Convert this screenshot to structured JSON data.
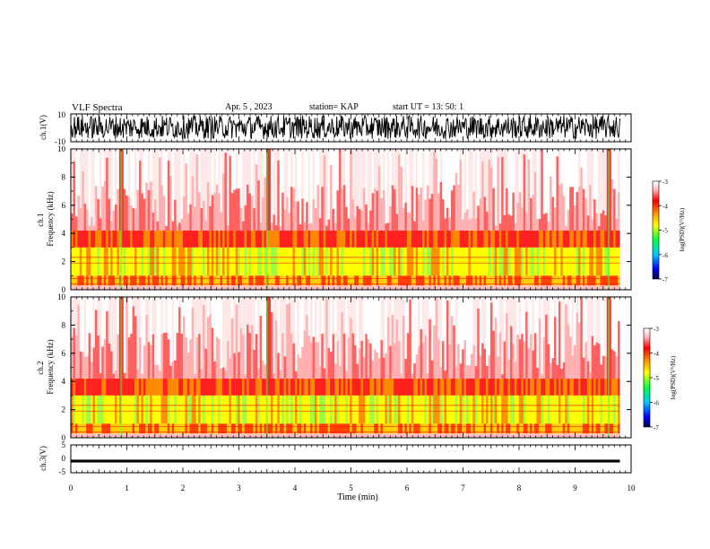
{
  "header": {
    "title": "VLF Spectra",
    "date": "Apr. 5 , 2023",
    "station": "station= KAP",
    "start": "start UT = 13: 50: 1"
  },
  "colors": {
    "colormap": [
      "#00003c",
      "#0000ff",
      "#00c8ff",
      "#00ff40",
      "#ffff00",
      "#ff8800",
      "#ff0000",
      "#ffc0c0",
      "#ffffff"
    ],
    "waveform": "#000000"
  },
  "chart_data": [
    {
      "type": "line",
      "panel": "ch1-waveform",
      "ylabel": "ch.1(V)",
      "ylim": [
        -10,
        10
      ],
      "yticks": [
        "10",
        "-10"
      ],
      "description_of_signal": "dense oscillating waveform filling most of range",
      "approx_amplitude_range": [
        -8,
        9
      ]
    },
    {
      "type": "heatmap",
      "panel": "ch1-spectrogram",
      "ylabel": "ch.1\nFrequency (kHz)",
      "ylim": [
        0,
        10
      ],
      "yticks": [
        "0",
        "2",
        "4",
        "6",
        "8",
        "10"
      ],
      "colorbar": {
        "label": "log(PSD)(V²/Hz)",
        "range": [
          -7,
          -3
        ],
        "ticks": [
          "-3",
          "-4",
          "-5",
          "-6",
          "-7"
        ]
      },
      "features": {
        "dominant_power_band_khz": [
          1,
          3
        ],
        "strong_vertical_event_times_min": [
          0.9,
          3.5,
          9.6
        ]
      }
    },
    {
      "type": "heatmap",
      "panel": "ch2-spectrogram",
      "ylabel": "ch.2\nFrequency (kHz)",
      "ylim": [
        0,
        10
      ],
      "yticks": [
        "0",
        "2",
        "4",
        "6",
        "8",
        "10"
      ],
      "colorbar": {
        "label": "log(PSD)(V²/Hz)",
        "range": [
          -7,
          -3
        ],
        "ticks": [
          "-3",
          "-4",
          "-5",
          "-6",
          "-7"
        ]
      },
      "features": {
        "dominant_power_band_khz": [
          1,
          3
        ],
        "strong_vertical_event_times_min": [
          0.9,
          3.5,
          9.6
        ]
      }
    },
    {
      "type": "line",
      "panel": "ch3-waveform",
      "ylabel": "ch.3(V)",
      "ylim": [
        -5,
        5
      ],
      "yticks": [
        "5",
        "0",
        "-5"
      ],
      "approx_level": -0.8,
      "approx_amplitude": 0.5
    }
  ],
  "xaxis": {
    "label": "Time (min)",
    "range": [
      0,
      10
    ],
    "ticks": [
      "0",
      "1",
      "2",
      "3",
      "4",
      "5",
      "6",
      "7",
      "8",
      "9",
      "10"
    ],
    "data_end_min": 9.8
  }
}
